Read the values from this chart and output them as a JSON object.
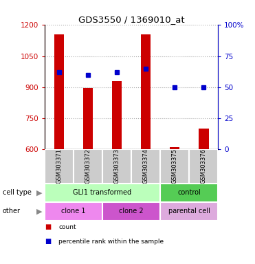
{
  "title": "GDS3550 / 1369010_at",
  "samples": [
    "GSM303371",
    "GSM303372",
    "GSM303373",
    "GSM303374",
    "GSM303375",
    "GSM303376"
  ],
  "bar_values": [
    1155,
    895,
    930,
    1155,
    610,
    700
  ],
  "bar_baseline": 600,
  "percentile_values": [
    62,
    60,
    62,
    65,
    50,
    50
  ],
  "left_ylim": [
    600,
    1200
  ],
  "left_yticks": [
    600,
    750,
    900,
    1050,
    1200
  ],
  "right_ylim": [
    0,
    100
  ],
  "right_yticks": [
    0,
    25,
    50,
    75,
    100
  ],
  "right_yticklabels": [
    "0",
    "25",
    "50",
    "75",
    "100%"
  ],
  "bar_color": "#cc0000",
  "dot_color": "#0000cc",
  "left_tick_color": "#cc0000",
  "right_tick_color": "#0000cc",
  "grid_color": "#aaaaaa",
  "cell_type_labels": [
    {
      "text": "GLI1 transformed",
      "span": [
        0,
        3
      ],
      "color": "#bbffbb"
    },
    {
      "text": "control",
      "span": [
        4,
        5
      ],
      "color": "#55cc55"
    }
  ],
  "other_labels": [
    {
      "text": "clone 1",
      "span": [
        0,
        1
      ],
      "color": "#ee88ee"
    },
    {
      "text": "clone 2",
      "span": [
        2,
        3
      ],
      "color": "#cc55cc"
    },
    {
      "text": "parental cell",
      "span": [
        4,
        5
      ],
      "color": "#ddaadd"
    }
  ],
  "row_labels": [
    "cell type",
    "other"
  ],
  "legend_items": [
    {
      "color": "#cc0000",
      "label": "count"
    },
    {
      "color": "#0000cc",
      "label": "percentile rank within the sample"
    }
  ],
  "bar_width": 0.35
}
